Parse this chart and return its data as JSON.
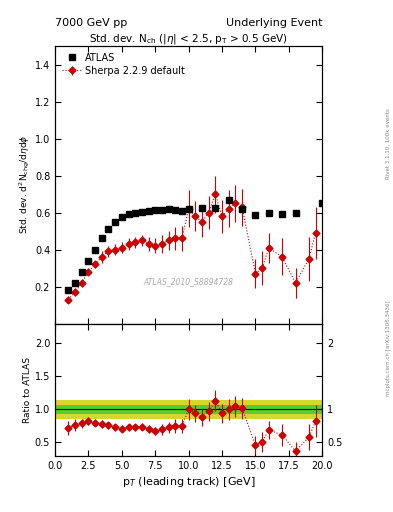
{
  "title_left": "7000 GeV pp",
  "title_right": "Underlying Event",
  "plot_title": "Std. dev. N$_{ch}$ ($|\\eta|$ < 2.5, p$_{T}$ > 0.5 GeV)",
  "ylabel_main": "Std. dev. d$^{2}$N$_{chg}$/d$\\eta$d$\\phi$",
  "ylabel_ratio": "Ratio to ATLAS",
  "xlabel": "p$_{T}$ (leading track) [GeV]",
  "watermark": "ATLAS_2010_S8894728",
  "rivet_label": "Rivet 3.1.10, 100k events",
  "arxiv_label": "mcplots.cern.ch [arXiv:1306.3436]",
  "xlim": [
    0,
    20
  ],
  "ylim_main": [
    0,
    1.5
  ],
  "ylim_ratio": [
    0.3,
    2.3
  ],
  "yticks_main": [
    0.2,
    0.4,
    0.6,
    0.8,
    1.0,
    1.2,
    1.4
  ],
  "yticks_ratio": [
    0.5,
    1.0,
    1.5,
    2.0
  ],
  "atlas_x": [
    1.0,
    1.5,
    2.0,
    2.5,
    3.0,
    3.5,
    4.0,
    4.5,
    5.0,
    5.5,
    6.0,
    6.5,
    7.0,
    7.5,
    8.0,
    8.5,
    9.0,
    9.5,
    10.0,
    11.0,
    12.0,
    13.0,
    14.0,
    15.0,
    16.0,
    17.0,
    18.0,
    20.0
  ],
  "atlas_y": [
    0.18,
    0.22,
    0.28,
    0.34,
    0.4,
    0.46,
    0.51,
    0.55,
    0.575,
    0.59,
    0.6,
    0.605,
    0.61,
    0.615,
    0.615,
    0.62,
    0.615,
    0.61,
    0.62,
    0.625,
    0.625,
    0.67,
    0.62,
    0.585,
    0.595,
    0.59,
    0.6,
    0.65
  ],
  "sherpa_x": [
    1.0,
    1.5,
    2.0,
    2.5,
    3.0,
    3.5,
    4.0,
    4.5,
    5.0,
    5.5,
    6.0,
    6.5,
    7.0,
    7.5,
    8.0,
    8.5,
    9.0,
    9.5,
    10.0,
    10.5,
    11.0,
    11.5,
    12.0,
    12.5,
    13.0,
    13.5,
    14.0,
    15.0,
    15.5,
    16.0,
    17.0,
    18.0,
    19.0,
    19.5
  ],
  "sherpa_y": [
    0.13,
    0.17,
    0.22,
    0.28,
    0.32,
    0.36,
    0.39,
    0.4,
    0.41,
    0.43,
    0.44,
    0.45,
    0.43,
    0.42,
    0.43,
    0.45,
    0.46,
    0.46,
    0.62,
    0.58,
    0.55,
    0.6,
    0.7,
    0.58,
    0.62,
    0.65,
    0.63,
    0.27,
    0.3,
    0.41,
    0.36,
    0.22,
    0.35,
    0.49
  ],
  "sherpa_yerr": [
    0.02,
    0.02,
    0.02,
    0.02,
    0.02,
    0.03,
    0.03,
    0.03,
    0.03,
    0.03,
    0.03,
    0.03,
    0.04,
    0.04,
    0.05,
    0.05,
    0.06,
    0.07,
    0.1,
    0.08,
    0.08,
    0.09,
    0.1,
    0.09,
    0.1,
    0.1,
    0.1,
    0.08,
    0.09,
    0.08,
    0.1,
    0.08,
    0.12,
    0.14
  ],
  "ratio_x": [
    1.0,
    1.5,
    2.0,
    2.5,
    3.0,
    3.5,
    4.0,
    4.5,
    5.0,
    5.5,
    6.0,
    6.5,
    7.0,
    7.5,
    8.0,
    8.5,
    9.0,
    9.5,
    10.0,
    10.5,
    11.0,
    11.5,
    12.0,
    12.5,
    13.0,
    13.5,
    14.0,
    15.0,
    15.5,
    16.0,
    17.0,
    18.0,
    19.0,
    19.5
  ],
  "ratio_y": [
    0.72,
    0.77,
    0.79,
    0.82,
    0.8,
    0.78,
    0.76,
    0.73,
    0.71,
    0.73,
    0.73,
    0.74,
    0.71,
    0.68,
    0.7,
    0.73,
    0.75,
    0.75,
    1.0,
    0.94,
    0.88,
    0.97,
    1.13,
    0.94,
    1.0,
    1.05,
    1.02,
    0.46,
    0.51,
    0.69,
    0.61,
    0.37,
    0.58,
    0.82
  ],
  "ratio_yerr": [
    0.1,
    0.09,
    0.07,
    0.06,
    0.05,
    0.06,
    0.05,
    0.05,
    0.05,
    0.05,
    0.05,
    0.05,
    0.06,
    0.06,
    0.08,
    0.08,
    0.1,
    0.11,
    0.16,
    0.13,
    0.13,
    0.15,
    0.16,
    0.14,
    0.16,
    0.16,
    0.16,
    0.14,
    0.15,
    0.13,
    0.17,
    0.13,
    0.2,
    0.24
  ],
  "green_band": [
    0.93,
    1.07
  ],
  "yellow_band": [
    0.85,
    1.15
  ],
  "atlas_color": "#000000",
  "sherpa_color": "#cc0000",
  "atlas_marker": "s",
  "sherpa_marker": "D",
  "atlas_markersize": 4.5,
  "sherpa_markersize": 3.5,
  "background_color": "#ffffff",
  "green_color": "#33cc33",
  "yellow_color": "#cccc00"
}
